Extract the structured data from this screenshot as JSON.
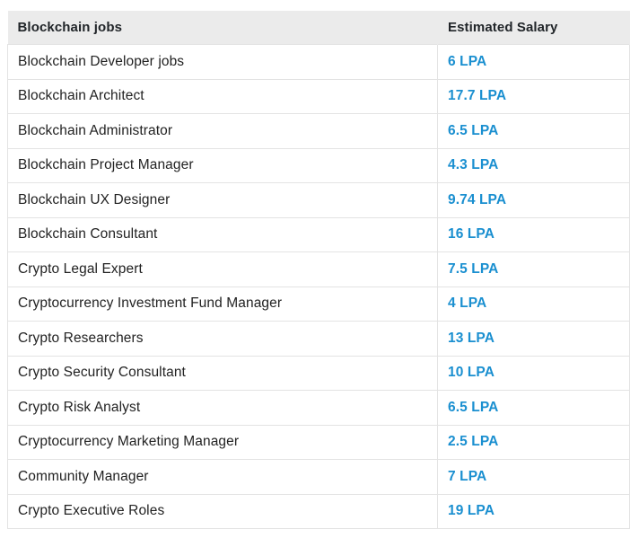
{
  "table": {
    "headers": {
      "job": "Blockchain jobs",
      "salary": "Estimated Salary"
    },
    "rows": [
      {
        "job": "Blockchain Developer jobs",
        "salary": "6 LPA"
      },
      {
        "job": "Blockchain Architect",
        "salary": "17.7 LPA"
      },
      {
        "job": "Blockchain Administrator",
        "salary": "6.5 LPA"
      },
      {
        "job": "Blockchain Project Manager",
        "salary": "4.3 LPA"
      },
      {
        "job": "Blockchain UX Designer",
        "salary": "9.74 LPA"
      },
      {
        "job": "Blockchain Consultant",
        "salary": "16 LPA"
      },
      {
        "job": "Crypto Legal Expert",
        "salary": "7.5 LPA"
      },
      {
        "job": "Cryptocurrency Investment Fund Manager",
        "salary": "4 LPA"
      },
      {
        "job": "Crypto Researchers",
        "salary": "13 LPA"
      },
      {
        "job": "Crypto Security Consultant",
        "salary": "10 LPA"
      },
      {
        "job": "Crypto Risk Analyst",
        "salary": "6.5 LPA"
      },
      {
        "job": "Cryptocurrency Marketing Manager",
        "salary": "2.5 LPA"
      },
      {
        "job": "Community Manager",
        "salary": "7 LPA"
      },
      {
        "job": "Crypto Executive Roles",
        "salary": "19 LPA"
      }
    ]
  },
  "colors": {
    "header_bg": "#ebebeb",
    "salary_text": "#1a8fd0",
    "border": "#e3e3e3"
  }
}
